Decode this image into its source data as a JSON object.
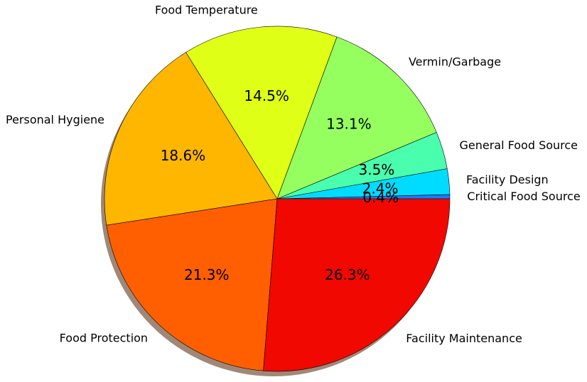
{
  "chart_data": {
    "type": "pie",
    "title": "",
    "start_angle_deg": 0,
    "direction": "clockwise",
    "shadow": true,
    "slices": [
      {
        "label": "Critical Food Source",
        "value": 0.4,
        "pct_label": "0.4%",
        "color": "#1a7cff"
      },
      {
        "label": "Facility Design",
        "value": 2.4,
        "pct_label": "2.4%",
        "color": "#00dcff"
      },
      {
        "label": "General Food Source",
        "value": 3.5,
        "pct_label": "3.5%",
        "color": "#49ffad"
      },
      {
        "label": "Vermin/Garbage",
        "value": 13.1,
        "pct_label": "13.1%",
        "color": "#96ff60"
      },
      {
        "label": "Food Temperature",
        "value": 14.5,
        "pct_label": "14.5%",
        "color": "#dfff16"
      },
      {
        "label": "Personal Hygiene",
        "value": 18.6,
        "pct_label": "18.6%",
        "color": "#ffb600"
      },
      {
        "label": "Food Protection",
        "value": 21.3,
        "pct_label": "21.3%",
        "color": "#ff5f00"
      },
      {
        "label": "Facility Maintenance",
        "value": 26.3,
        "pct_label": "26.3%",
        "color": "#f10800"
      }
    ]
  }
}
